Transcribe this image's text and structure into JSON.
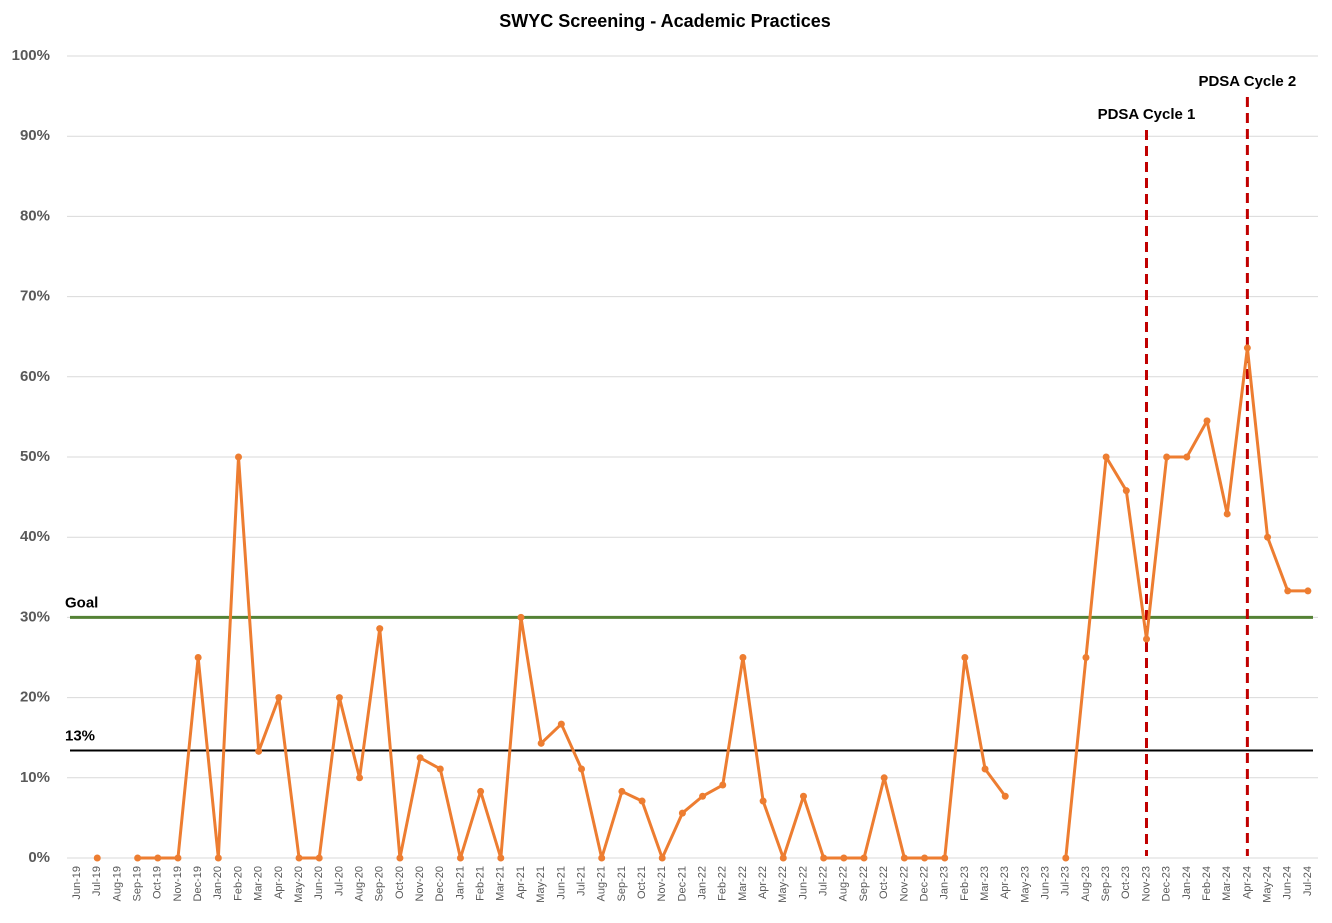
{
  "chart_data": {
    "type": "line",
    "title": "SWYC Screening - Academic Practices",
    "categories": [
      "Jun-19",
      "Jul-19",
      "Aug-19",
      "Sep-19",
      "Oct-19",
      "Nov-19",
      "Dec-19",
      "Jan-20",
      "Feb-20",
      "Mar-20",
      "Apr-20",
      "May-20",
      "Jun-20",
      "Jul-20",
      "Aug-20",
      "Sep-20",
      "Oct-20",
      "Nov-20",
      "Dec-20",
      "Jan-21",
      "Feb-21",
      "Mar-21",
      "Apr-21",
      "May-21",
      "Jun-21",
      "Jul-21",
      "Aug-21",
      "Sep-21",
      "Oct-21",
      "Nov-21",
      "Dec-21",
      "Jan-22",
      "Feb-22",
      "Mar-22",
      "Apr-22",
      "May-22",
      "Jun-22",
      "Jul-22",
      "Aug-22",
      "Sep-22",
      "Oct-22",
      "Nov-22",
      "Dec-22",
      "Jan-23",
      "Feb-23",
      "Mar-23",
      "Apr-23",
      "May-23",
      "Jun-23",
      "Jul-23",
      "Aug-23",
      "Sep-23",
      "Oct-23",
      "Nov-23",
      "Dec-23",
      "Jan-24",
      "Feb-24",
      "Mar-24",
      "Apr-24",
      "May-24",
      "Jun-24",
      "Jul-24"
    ],
    "series": [
      {
        "color": "#ed7d31",
        "values": [
          null,
          0,
          null,
          0,
          0,
          0,
          25,
          0,
          50,
          13.3,
          20,
          0,
          0,
          20,
          10,
          28.6,
          0,
          12.5,
          11.1,
          0,
          8.3,
          0,
          30,
          14.3,
          16.7,
          11.1,
          0,
          8.3,
          7.1,
          0,
          5.6,
          7.7,
          9.1,
          25,
          7.1,
          0,
          7.7,
          0,
          0,
          0,
          10,
          0,
          0,
          0,
          25,
          11.1,
          7.7,
          null,
          null,
          0,
          25,
          50,
          45.8,
          27.3,
          50,
          50,
          54.5,
          42.9,
          63.6,
          40,
          33.3,
          33.3
        ]
      }
    ],
    "ylim": [
      0,
      100
    ],
    "yticks": [
      {
        "value": 0,
        "label": "0%"
      },
      {
        "value": 10,
        "label": "10%"
      },
      {
        "value": 20,
        "label": "20%"
      },
      {
        "value": 30,
        "label": "30%"
      },
      {
        "value": 40,
        "label": "40%"
      },
      {
        "value": 50,
        "label": "50%"
      },
      {
        "value": 60,
        "label": "60%"
      },
      {
        "value": 70,
        "label": "70%"
      },
      {
        "value": 80,
        "label": "80%"
      },
      {
        "value": 90,
        "label": "90%"
      },
      {
        "value": 100,
        "label": "100%"
      }
    ],
    "grid": true,
    "reference_lines": [
      {
        "label": "Goal",
        "value": 30,
        "color": "#548235"
      },
      {
        "label": "13%",
        "value": 13.4,
        "color": "#000000"
      }
    ],
    "annotations": [
      {
        "label": "PDSA Cycle 1",
        "x": "Nov-23",
        "color": "#c00000"
      },
      {
        "label": "PDSA Cycle 2",
        "x": "Apr-24",
        "color": "#c00000"
      }
    ]
  }
}
